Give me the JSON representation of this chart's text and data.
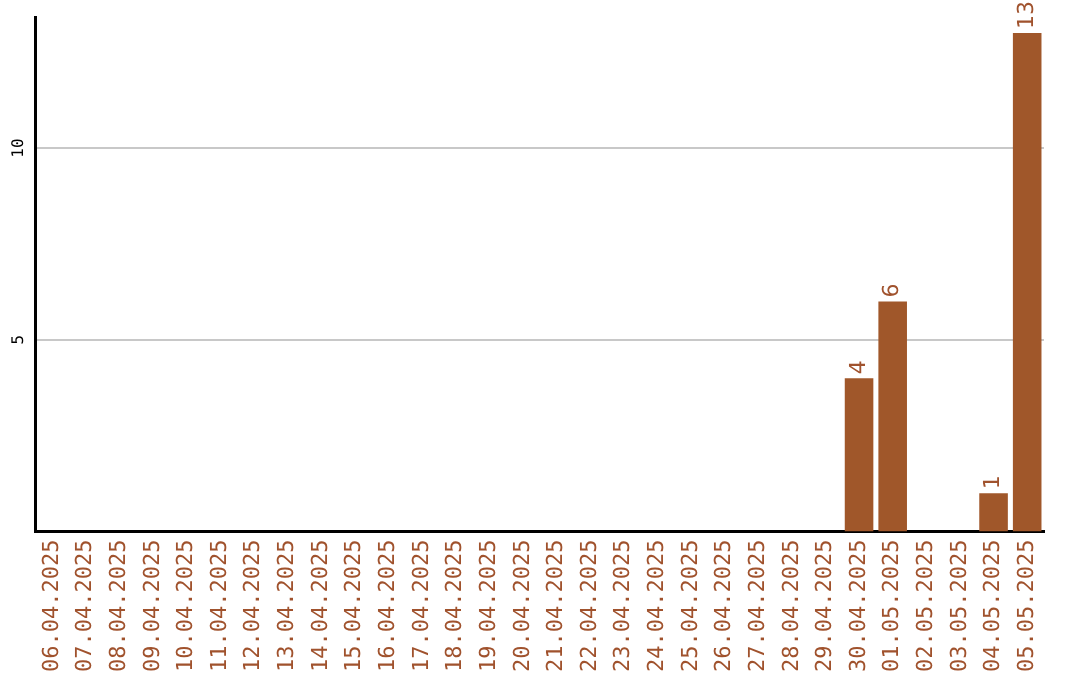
{
  "chart_data": {
    "type": "bar",
    "categories": [
      "06.04.2025",
      "07.04.2025",
      "08.04.2025",
      "09.04.2025",
      "10.04.2025",
      "11.04.2025",
      "12.04.2025",
      "13.04.2025",
      "14.04.2025",
      "15.04.2025",
      "16.04.2025",
      "17.04.2025",
      "18.04.2025",
      "19.04.2025",
      "20.04.2025",
      "21.04.2025",
      "22.04.2025",
      "23.04.2025",
      "24.04.2025",
      "25.04.2025",
      "26.04.2025",
      "27.04.2025",
      "28.04.2025",
      "29.04.2025",
      "30.04.2025",
      "01.05.2025",
      "02.05.2025",
      "03.05.2025",
      "04.05.2025",
      "05.05.2025"
    ],
    "values": [
      0,
      0,
      0,
      0,
      0,
      0,
      0,
      0,
      0,
      0,
      0,
      0,
      0,
      0,
      0,
      0,
      0,
      0,
      0,
      0,
      0,
      0,
      0,
      0,
      4,
      6,
      0,
      0,
      1,
      13
    ],
    "value_labels": [
      null,
      null,
      null,
      null,
      null,
      null,
      null,
      null,
      null,
      null,
      null,
      null,
      null,
      null,
      null,
      null,
      null,
      null,
      null,
      null,
      null,
      null,
      null,
      null,
      "4",
      "6",
      null,
      null,
      "1",
      "13"
    ],
    "color": "#a0572a",
    "ylim": [
      0,
      13.4
    ],
    "yticks": [
      5,
      10
    ],
    "grid": "y"
  }
}
